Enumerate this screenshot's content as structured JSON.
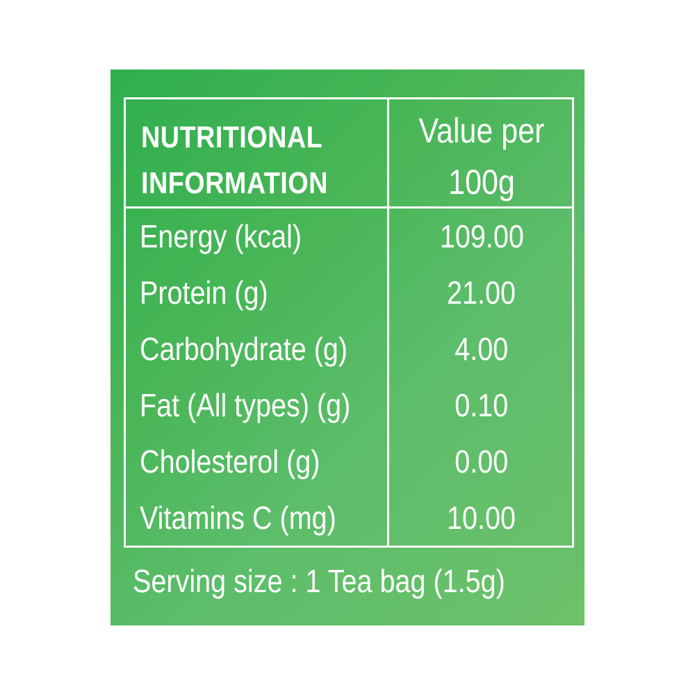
{
  "label": {
    "header": {
      "left_line1": "NUTRITIONAL",
      "left_line2": "INFORMATION",
      "right_line1": "Value per",
      "right_line2": "100g"
    },
    "rows": [
      {
        "name": "Energy (kcal)",
        "value": "109.00"
      },
      {
        "name": "Protein (g)",
        "value": "21.00"
      },
      {
        "name": "Carbohydrate (g)",
        "value": "4.00"
      },
      {
        "name": "Fat (All types) (g)",
        "value": "0.10"
      },
      {
        "name": "Cholesterol (g)",
        "value": "0.00"
      },
      {
        "name": "Vitamins C (mg)",
        "value": "10.00"
      }
    ],
    "serving": "Serving size : 1 Tea bag (1.5g)"
  },
  "colors": {
    "panel_start": "#2fae4e",
    "panel_end": "#6dc16a",
    "text": "#ffffff"
  }
}
